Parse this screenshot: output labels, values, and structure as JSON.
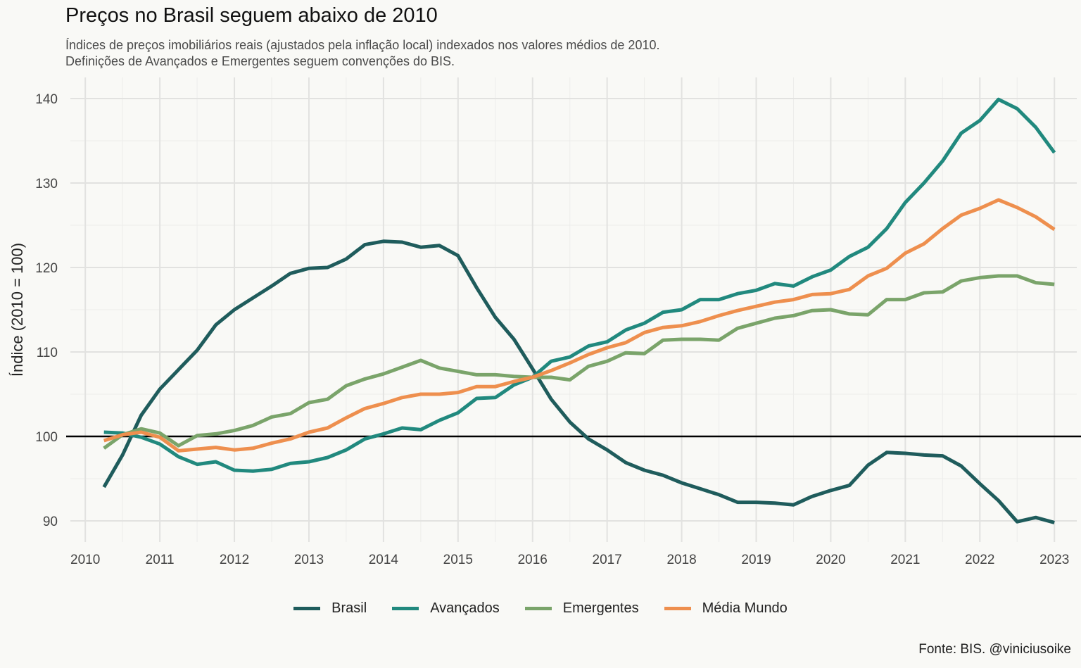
{
  "chart_data": {
    "type": "line",
    "title": "Preços no Brasil seguem abaixo de 2010",
    "subtitle_lines": [
      "Índices de preços imobiliários reais (ajustados pela inflação local) indexados nos valores médios de 2010.",
      "Definições de Avançados e Emergentes seguem convenções do BIS."
    ],
    "xlabel": "",
    "ylabel": "Índice (2010 = 100)",
    "caption": "Fonte: BIS. @viniciusoike",
    "xlim": [
      2009.8,
      2023.3
    ],
    "ylim": [
      87.5,
      142.5
    ],
    "x_ticks": [
      2010,
      2011,
      2012,
      2013,
      2014,
      2015,
      2016,
      2017,
      2018,
      2019,
      2020,
      2021,
      2022,
      2023
    ],
    "y_ticks": [
      90,
      100,
      110,
      120,
      130,
      140
    ],
    "reference_line": 100,
    "grid": true,
    "legend_position": "bottom",
    "x": [
      2010.25,
      2010.5,
      2010.75,
      2011.0,
      2011.25,
      2011.5,
      2011.75,
      2012.0,
      2012.25,
      2012.5,
      2012.75,
      2013.0,
      2013.25,
      2013.5,
      2013.75,
      2014.0,
      2014.25,
      2014.5,
      2014.75,
      2015.0,
      2015.25,
      2015.5,
      2015.75,
      2016.0,
      2016.25,
      2016.5,
      2016.75,
      2017.0,
      2017.25,
      2017.5,
      2017.75,
      2018.0,
      2018.25,
      2018.5,
      2018.75,
      2019.0,
      2019.25,
      2019.5,
      2019.75,
      2020.0,
      2020.25,
      2020.5,
      2020.75,
      2021.0,
      2021.25,
      2021.5,
      2021.75,
      2022.0,
      2022.25,
      2022.5,
      2022.75,
      2023.0
    ],
    "series": [
      {
        "name": "Brasil",
        "color": "#1f5c5c",
        "values": [
          94.0,
          97.8,
          102.5,
          105.6,
          107.9,
          110.2,
          113.2,
          115.0,
          116.4,
          117.8,
          119.3,
          119.9,
          120.0,
          121.0,
          122.7,
          123.1,
          123.0,
          122.4,
          122.6,
          121.4,
          117.6,
          114.1,
          111.5,
          108.0,
          104.4,
          101.7,
          99.7,
          98.4,
          96.9,
          96.0,
          95.4,
          94.5,
          93.8,
          93.1,
          92.2,
          92.2,
          92.1,
          91.9,
          92.9,
          93.6,
          94.2,
          96.6,
          98.1,
          98.0,
          97.8,
          97.7,
          96.5,
          94.4,
          92.4,
          89.9,
          90.4,
          89.8
        ]
      },
      {
        "name": "Avançados",
        "color": "#21897e",
        "values": [
          100.5,
          100.4,
          99.9,
          99.1,
          97.6,
          96.7,
          97.0,
          96.0,
          95.9,
          96.1,
          96.8,
          97.0,
          97.5,
          98.4,
          99.7,
          100.3,
          101.0,
          100.8,
          101.9,
          102.8,
          104.5,
          104.6,
          106.1,
          107.0,
          108.9,
          109.4,
          110.7,
          111.2,
          112.6,
          113.4,
          114.7,
          115.0,
          116.2,
          116.2,
          116.9,
          117.3,
          118.1,
          117.8,
          118.9,
          119.7,
          121.3,
          122.4,
          124.6,
          127.7,
          130.0,
          132.6,
          135.9,
          137.4,
          139.9,
          138.8,
          136.6,
          133.6
        ]
      },
      {
        "name": "Emergentes",
        "color": "#7aa46a",
        "values": [
          98.6,
          100.2,
          100.9,
          100.4,
          98.9,
          100.1,
          100.3,
          100.7,
          101.3,
          102.3,
          102.7,
          104.0,
          104.4,
          106.0,
          106.8,
          107.4,
          108.2,
          109.0,
          108.1,
          107.7,
          107.3,
          107.3,
          107.1,
          107.0,
          107.0,
          106.7,
          108.3,
          108.9,
          109.9,
          109.8,
          111.4,
          111.5,
          111.5,
          111.4,
          112.8,
          113.4,
          114.0,
          114.3,
          114.9,
          115.0,
          114.5,
          114.4,
          116.2,
          116.2,
          117.0,
          117.1,
          118.4,
          118.8,
          119.0,
          119.0,
          118.2,
          118.0
        ]
      },
      {
        "name": "Média Mundo",
        "color": "#ee8f4e",
        "values": [
          99.5,
          100.2,
          100.5,
          99.9,
          98.3,
          98.5,
          98.7,
          98.4,
          98.6,
          99.2,
          99.7,
          100.5,
          101.0,
          102.2,
          103.3,
          103.9,
          104.6,
          105.0,
          105.0,
          105.2,
          105.9,
          105.9,
          106.5,
          107.0,
          107.8,
          108.7,
          109.7,
          110.5,
          111.1,
          112.3,
          112.9,
          113.1,
          113.6,
          114.3,
          114.9,
          115.4,
          115.9,
          116.2,
          116.8,
          116.9,
          117.4,
          119.0,
          119.9,
          121.7,
          122.8,
          124.6,
          126.2,
          127.0,
          128.0,
          127.1,
          126.0,
          124.5
        ]
      }
    ]
  }
}
